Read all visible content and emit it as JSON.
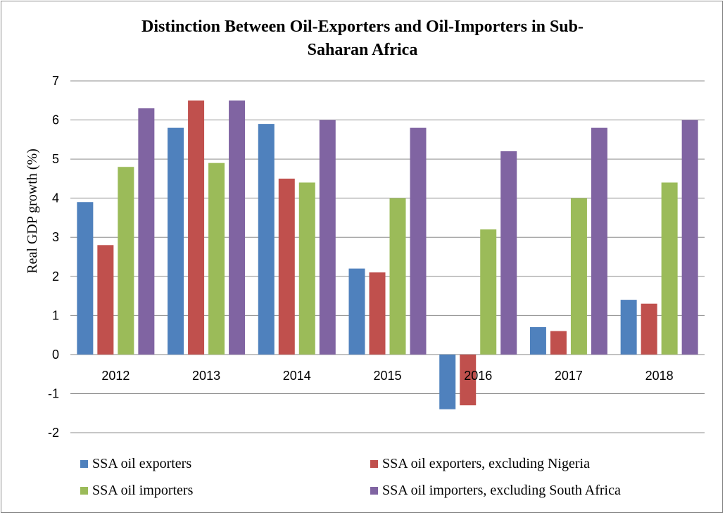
{
  "chart_data": {
    "type": "bar",
    "title_lines": [
      "Distinction Between Oil-Exporters and Oil-Importers in Sub-",
      "Saharan Africa"
    ],
    "ylabel": "Real  GDP growth (%)",
    "xlabel": "",
    "ylim": [
      -2,
      7
    ],
    "yticks": [
      -2,
      -1,
      0,
      1,
      2,
      3,
      4,
      5,
      6,
      7
    ],
    "grid": true,
    "legend_position": "bottom",
    "categories": [
      "2012",
      "2013",
      "2014",
      "2015",
      "2016",
      "2017",
      "2018"
    ],
    "series": [
      {
        "name": "SSA oil exporters",
        "color": "#4f81bd",
        "values": [
          3.9,
          5.8,
          5.9,
          2.2,
          -1.4,
          0.7,
          1.4
        ]
      },
      {
        "name": "SSA oil exporters, excluding Nigeria",
        "color": "#c0504d",
        "values": [
          2.8,
          6.5,
          4.5,
          2.1,
          -1.3,
          0.6,
          1.3
        ]
      },
      {
        "name": "SSA oil importers",
        "color": "#9bbb59",
        "values": [
          4.8,
          4.9,
          4.4,
          4.0,
          3.2,
          4.0,
          4.4
        ]
      },
      {
        "name": "SSA oil importers, excluding South Africa",
        "color": "#8064a2",
        "values": [
          6.3,
          6.5,
          6.0,
          5.8,
          5.2,
          5.8,
          6.0
        ]
      }
    ]
  }
}
